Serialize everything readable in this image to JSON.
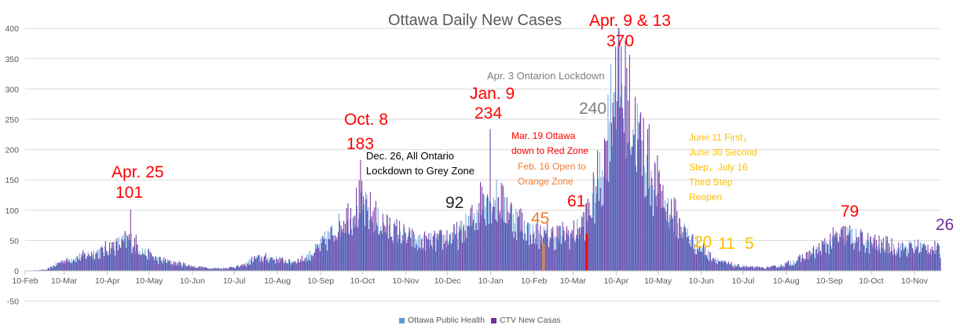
{
  "chart_data": {
    "type": "bar",
    "title": "Ottawa Daily New Cases",
    "xlabel": "",
    "ylabel": "",
    "ylim": [
      -50,
      400
    ],
    "yticks": [
      -50,
      0,
      50,
      100,
      150,
      200,
      250,
      300,
      350,
      400
    ],
    "grid": true,
    "legend_position": "bottom",
    "x_tick_labels": [
      "10-Feb",
      "10-Mar",
      "10-Apr",
      "10-May",
      "10-Jun",
      "10-Jul",
      "10-Aug",
      "10-Sep",
      "10-Oct",
      "10-Nov",
      "10-Dec",
      "10-Jan",
      "10-Feb",
      "10-Mar",
      "10-Apr",
      "10-May",
      "10-Jun",
      "10-Jul",
      "10-Aug",
      "10-Sep",
      "10-Oct",
      "10-Nov"
    ],
    "x_tick_days": [
      0,
      28,
      59,
      89,
      120,
      150,
      181,
      212,
      242,
      273,
      303,
      334,
      365,
      393,
      424,
      454,
      485,
      515,
      546,
      577,
      607,
      638
    ],
    "total_days": 656,
    "series": [
      {
        "name": "Ottawa Public Health",
        "color": "#5b9bd5"
      },
      {
        "name": "CTV New Casas",
        "color": "#7030a0"
      }
    ],
    "key_values": [
      {
        "date": "Apr. 25",
        "day": 75,
        "value": 101
      },
      {
        "date": "Oct. 8",
        "day": 240,
        "value": 183
      },
      {
        "date": "Jan. 9",
        "day": 333,
        "value": 234
      },
      {
        "date": "Apr. 9 & 13",
        "day": 423,
        "value": 370
      }
    ],
    "annotations": [
      {
        "text": "Apr. 25",
        "color": "#ff0000",
        "size": 21,
        "x": 142,
        "y": 209
      },
      {
        "text": "101",
        "color": "#ff0000",
        "size": 21,
        "x": 147,
        "y": 235
      },
      {
        "text": "Oct. 8",
        "color": "#ff0000",
        "size": 21,
        "x": 438,
        "y": 142
      },
      {
        "text": "183",
        "color": "#ff0000",
        "size": 21,
        "x": 441,
        "y": 173
      },
      {
        "text": "Dec. 26, All Ontario",
        "color": "#000000",
        "size": 13,
        "x": 466,
        "y": 192
      },
      {
        "text": "Lockdown to Grey Zone",
        "color": "#000000",
        "size": 13,
        "x": 466,
        "y": 211
      },
      {
        "text": "92",
        "color": "#262626",
        "size": 21,
        "x": 567,
        "y": 248
      },
      {
        "text": "Jan. 9",
        "color": "#ff0000",
        "size": 21,
        "x": 598,
        "y": 109
      },
      {
        "text": "234",
        "color": "#ff0000",
        "size": 21,
        "x": 604,
        "y": 134
      },
      {
        "text": "Apr. 3 Ontarion Lockdown",
        "color": "#7f7f7f",
        "size": 13,
        "x": 620,
        "y": 90
      },
      {
        "text": "240",
        "color": "#7f7f7f",
        "size": 21,
        "x": 737,
        "y": 128
      },
      {
        "text": "Apr. 9 & 13",
        "color": "#ff0000",
        "size": 21,
        "x": 750,
        "y": 16
      },
      {
        "text": "370",
        "color": "#ff0000",
        "size": 21,
        "x": 772,
        "y": 42
      },
      {
        "text": "Mar. 19 Ottawa",
        "color": "#ff0000",
        "size": 12,
        "x": 651,
        "y": 167
      },
      {
        "text": "down to Red Zone",
        "color": "#ff0000",
        "size": 12,
        "x": 651,
        "y": 186
      },
      {
        "text": "Feb. 16 Open to",
        "color": "#ed7d31",
        "size": 12,
        "x": 659,
        "y": 206
      },
      {
        "text": "Orange Zone",
        "color": "#ed7d31",
        "size": 12,
        "x": 659,
        "y": 225
      },
      {
        "text": "45",
        "color": "#ed7d31",
        "size": 21,
        "x": 676,
        "y": 268
      },
      {
        "text": "61",
        "color": "#ff0000",
        "size": 21,
        "x": 722,
        "y": 246
      },
      {
        "text": "June 11 First，June 30 Second Step，July 16 Third Step Reopen",
        "color": "#ffc000",
        "size": 12,
        "x": 877,
        "y": 166,
        "width": 90
      },
      {
        "text": "20",
        "color": "#ffc000",
        "size": 21,
        "x": 883,
        "y": 298
      },
      {
        "text": "11",
        "color": "#ffc000",
        "size": 21,
        "x": 914,
        "y": 300
      },
      {
        "text": "5",
        "color": "#ffc000",
        "size": 21,
        "x": 948,
        "y": 300
      },
      {
        "text": "79",
        "color": "#ff0000",
        "size": 21,
        "x": 1070,
        "y": 259
      },
      {
        "text": "26",
        "color": "#7030a0",
        "size": 21,
        "x": 1191,
        "y": 276
      }
    ]
  }
}
